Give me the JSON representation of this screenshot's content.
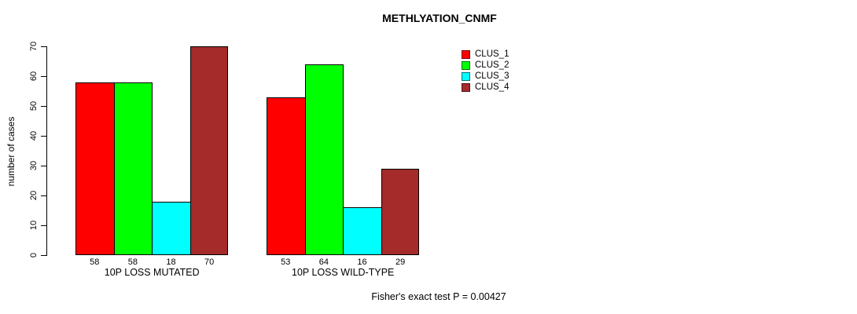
{
  "title": "METHLYATION_CNMF",
  "footer": "Fisher's exact test P = 0.00427",
  "chart_data": {
    "type": "bar",
    "title": "METHLYATION_CNMF",
    "xlabel": "",
    "ylabel": "number of cases",
    "ylim": [
      0,
      70
    ],
    "yticks": [
      0,
      10,
      20,
      30,
      40,
      50,
      60,
      70
    ],
    "grid": false,
    "legend_position": "top-right",
    "categories": [
      "10P LOSS MUTATED",
      "10P LOSS WILD-TYPE"
    ],
    "series": [
      {
        "name": "CLUS_1",
        "color": "#ff0000",
        "values": [
          58,
          53
        ]
      },
      {
        "name": "CLUS_2",
        "color": "#00ff00",
        "values": [
          58,
          64
        ]
      },
      {
        "name": "CLUS_3",
        "color": "#00ffff",
        "values": [
          18,
          16
        ]
      },
      {
        "name": "CLUS_4",
        "color": "#a52a2a",
        "values": [
          70,
          29
        ]
      }
    ],
    "value_labels_shown": true,
    "annotation": "Fisher's exact test P = 0.00427"
  }
}
